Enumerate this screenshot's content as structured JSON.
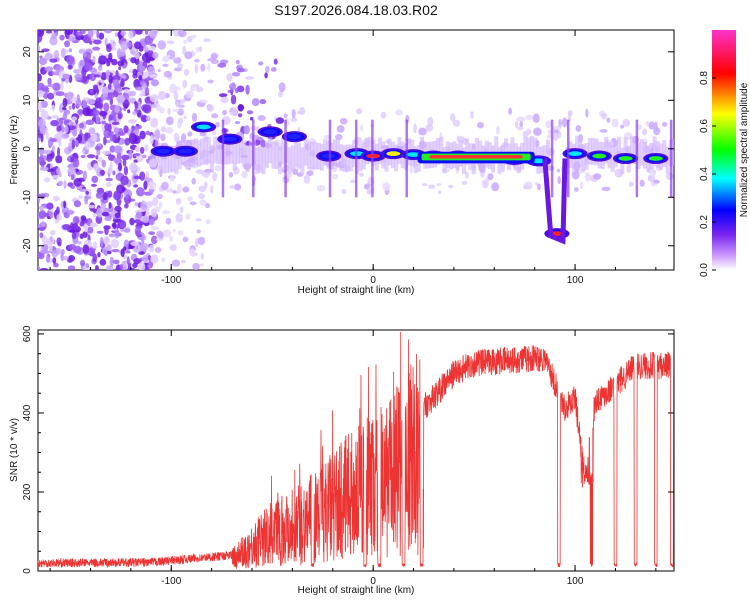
{
  "title": "S197.2026.084.18.03.R02",
  "chart_data": [
    {
      "type": "heatmap",
      "name": "spectrogram",
      "xlabel": "Height of straight line (km)",
      "ylabel": "Frequency (Hz)",
      "xlim": [
        -166,
        149
      ],
      "ylim": [
        -25,
        24.5
      ],
      "xticks": [
        -100,
        0,
        100
      ],
      "yticks": [
        -20,
        -10,
        0,
        10,
        20
      ],
      "ridge": [
        {
          "x": -104,
          "y": -0.5,
          "amp": 0.3
        },
        {
          "x": -93,
          "y": -0.5,
          "amp": 0.35
        },
        {
          "x": -84,
          "y": 4.5,
          "amp": 0.4
        },
        {
          "x": -71,
          "y": 2.0,
          "amp": 0.3
        },
        {
          "x": -51,
          "y": 3.5,
          "amp": 0.35
        },
        {
          "x": -39,
          "y": 2.5,
          "amp": 0.3
        },
        {
          "x": -22,
          "y": -1.5,
          "amp": 0.35
        },
        {
          "x": -8,
          "y": -1.0,
          "amp": 0.4
        },
        {
          "x": 0,
          "y": -1.5,
          "amp": 0.85
        },
        {
          "x": 10,
          "y": -1.0,
          "amp": 0.7
        },
        {
          "x": 20,
          "y": -1.2,
          "amp": 0.45
        },
        {
          "x": 30,
          "y": -1.5,
          "amp": 0.9
        },
        {
          "x": 42,
          "y": -1.5,
          "amp": 0.95
        },
        {
          "x": 55,
          "y": -1.8,
          "amp": 0.7
        },
        {
          "x": 70,
          "y": -2.2,
          "amp": 0.9
        },
        {
          "x": 82,
          "y": -2.5,
          "amp": 0.5
        },
        {
          "x": 91,
          "y": -17.5,
          "amp": 0.85
        },
        {
          "x": 100,
          "y": -1.0,
          "amp": 0.45
        },
        {
          "x": 112,
          "y": -1.5,
          "amp": 0.55
        },
        {
          "x": 125,
          "y": -2.0,
          "amp": 0.6
        },
        {
          "x": 140,
          "y": -2.0,
          "amp": 0.6
        }
      ],
      "colorbar": {
        "label": "Normalized spectral amplitude",
        "range": [
          0,
          1
        ],
        "ticks": [
          "0.0",
          "0.2",
          "0.4",
          "0.6",
          "0.8"
        ]
      }
    },
    {
      "type": "line",
      "name": "snr",
      "xlabel": "Height of straight line (km)",
      "ylabel": "SNR (10 * v/v)",
      "xlim": [
        -166,
        149
      ],
      "ylim": [
        0,
        610
      ],
      "xticks": [
        -100,
        0,
        100
      ],
      "yticks": [
        0,
        200,
        400,
        600
      ],
      "color": "#ee3333",
      "envelope": {
        "x": [
          -166,
          -110,
          -70,
          -50,
          -30,
          -10,
          10,
          20,
          30,
          40,
          50,
          70,
          85,
          95,
          100,
          105,
          110,
          120,
          130,
          149
        ],
        "y": [
          20,
          22,
          40,
          130,
          180,
          260,
          320,
          390,
          440,
          500,
          525,
          535,
          540,
          410,
          440,
          230,
          430,
          470,
          520,
          520
        ]
      },
      "dropouts_km": [
        -30,
        -4,
        3,
        15,
        24,
        92,
        108,
        120,
        130,
        140,
        148
      ]
    }
  ]
}
